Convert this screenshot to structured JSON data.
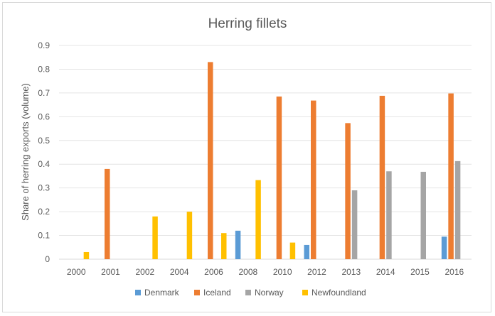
{
  "chart_data": {
    "type": "bar",
    "title": "Herring fillets",
    "ylabel": "Share of herring exports (volume)",
    "xlabel": "",
    "ylim": [
      0,
      0.9
    ],
    "yticks": [
      "0",
      "0.1",
      "0.2",
      "0.3",
      "0.4",
      "0.5",
      "0.6",
      "0.7",
      "0.8",
      "0.9"
    ],
    "grid": true,
    "legend_position": "bottom",
    "categories": [
      "2000",
      "2001",
      "2002",
      "2004",
      "2006",
      "2008",
      "2010",
      "2012",
      "2013",
      "2014",
      "2015",
      "2016"
    ],
    "series": [
      {
        "name": "Denmark",
        "color": "#5b9bd5",
        "values": [
          null,
          null,
          null,
          null,
          null,
          0.12,
          null,
          0.06,
          null,
          null,
          null,
          0.095
        ]
      },
      {
        "name": "Iceland",
        "color": "#ed7d31",
        "values": [
          null,
          0.38,
          null,
          null,
          0.83,
          null,
          0.685,
          0.668,
          0.573,
          0.688,
          null,
          0.698
        ]
      },
      {
        "name": "Norway",
        "color": "#a5a5a5",
        "values": [
          null,
          null,
          null,
          null,
          null,
          null,
          null,
          null,
          0.29,
          0.37,
          0.368,
          0.413
        ]
      },
      {
        "name": "Newfoundland",
        "color": "#ffc000",
        "values": [
          0.03,
          null,
          0.18,
          0.2,
          0.11,
          0.333,
          0.07,
          null,
          null,
          null,
          null,
          null
        ]
      }
    ]
  }
}
